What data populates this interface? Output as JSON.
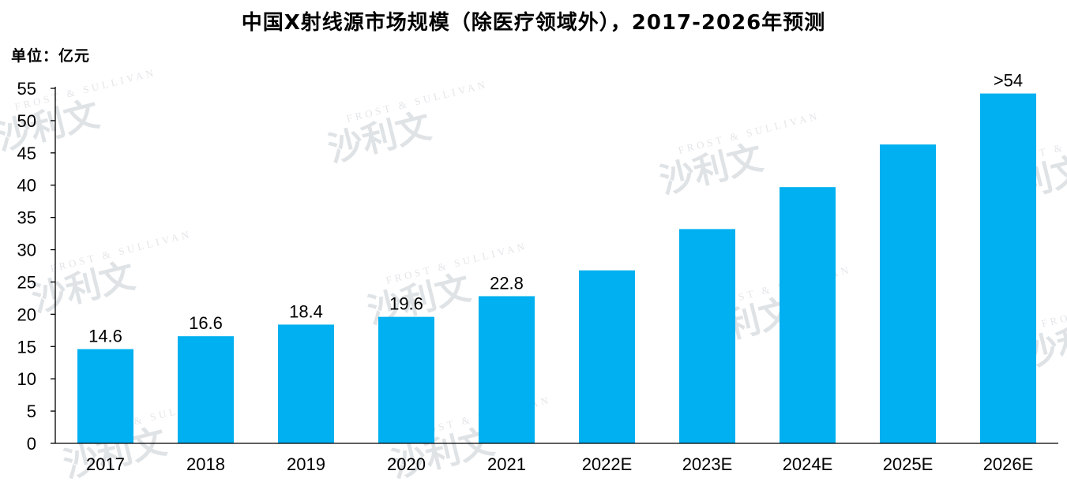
{
  "title": "中国X射线源市场规模（除医疗领域外），2017-2026年预测",
  "unit_label": "单位：亿元",
  "watermark": {
    "cn": "沙利文",
    "en": "FROST & SULLIVAN"
  },
  "colors": {
    "bar": "#00b0f0",
    "axis": "#000000",
    "watermark": "#dfe3e6"
  },
  "chart_data": {
    "type": "bar",
    "categories": [
      "2017",
      "2018",
      "2019",
      "2020",
      "2021",
      "2022E",
      "2023E",
      "2024E",
      "2025E",
      "2026E"
    ],
    "values": [
      14.6,
      16.6,
      18.4,
      19.6,
      22.8,
      26.8,
      33.2,
      39.7,
      46.3,
      54.2
    ],
    "data_labels": [
      "14.6",
      "16.6",
      "18.4",
      "19.6",
      "22.8",
      "",
      "",
      "",
      "",
      ">54"
    ],
    "title": "中国X射线源市场规模（除医疗领域外），2017-2026年预测",
    "ylabel": "单位：亿元",
    "xlabel": "",
    "ylim": [
      0,
      55
    ],
    "yticks": [
      0,
      5,
      10,
      15,
      20,
      25,
      30,
      35,
      40,
      45,
      50,
      55
    ],
    "grid": false,
    "legend": "none"
  }
}
